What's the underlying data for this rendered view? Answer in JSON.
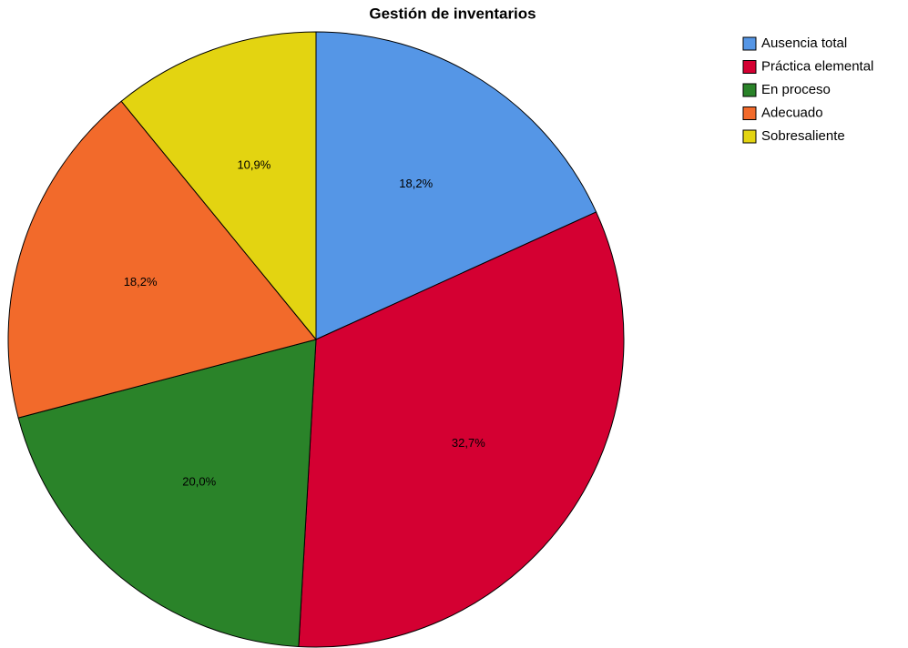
{
  "chart_data": {
    "type": "pie",
    "title": "Gestión de inventarios",
    "categories": [
      "Ausencia total",
      "Práctica elemental",
      "En proceso",
      "Adecuado",
      "Sobresaliente"
    ],
    "values": [
      18.2,
      32.7,
      20.0,
      18.2,
      10.9
    ],
    "value_labels": [
      "18,2%",
      "32,7%",
      "20,0%",
      "18,2%",
      "10,9%"
    ],
    "colors": [
      "#5596e6",
      "#d40032",
      "#2a8329",
      "#f26a2b",
      "#e3d411"
    ],
    "legend": "top-right"
  }
}
